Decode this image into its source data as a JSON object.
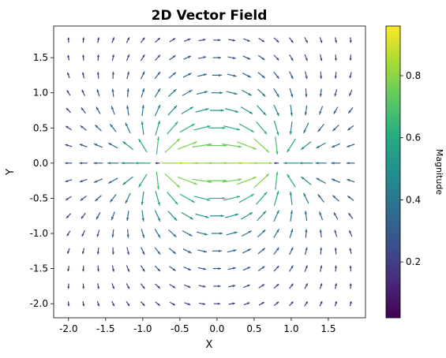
{
  "chart_data": {
    "type": "quiver",
    "title": "2D Vector Field",
    "xlabel": "X",
    "ylabel": "Y",
    "xlim": [
      -2.2,
      2.0
    ],
    "ylim": [
      -2.2,
      1.95
    ],
    "x_ticks": [
      -2.0,
      -1.5,
      -1.0,
      -0.5,
      0.0,
      0.5,
      1.0,
      1.5
    ],
    "x_tick_labels": [
      "-2.0",
      "-1.5",
      "-1.0",
      "-0.5",
      "0.0",
      "0.5",
      "1.0",
      "1.5"
    ],
    "y_ticks": [
      -2.0,
      -1.5,
      -1.0,
      -0.5,
      0.0,
      0.5,
      1.0,
      1.5
    ],
    "y_tick_labels": [
      "-2.0",
      "-1.5",
      "-1.0",
      "-0.5",
      "0.0",
      "0.5",
      "1.0",
      "1.5"
    ],
    "grid": false,
    "field": {
      "description_of_sampling": "grid",
      "x_start": -2.0,
      "x_step": 0.2,
      "x_count": 20,
      "y_start": -2.0,
      "y_step": 0.25,
      "y_count": 16,
      "sources": [
        {
          "x": -0.75,
          "y": 0.0,
          "strength": 1
        },
        {
          "x": 0.75,
          "y": 0.0,
          "strength": -1
        }
      ]
    },
    "colorbar": {
      "label": "Magnitude",
      "colormap": "viridis",
      "range": [
        0.02,
        0.96
      ],
      "ticks": [
        0.2,
        0.4,
        0.6,
        0.8
      ],
      "tick_labels": [
        "0.2",
        "0.4",
        "0.6",
        "0.8"
      ]
    }
  }
}
